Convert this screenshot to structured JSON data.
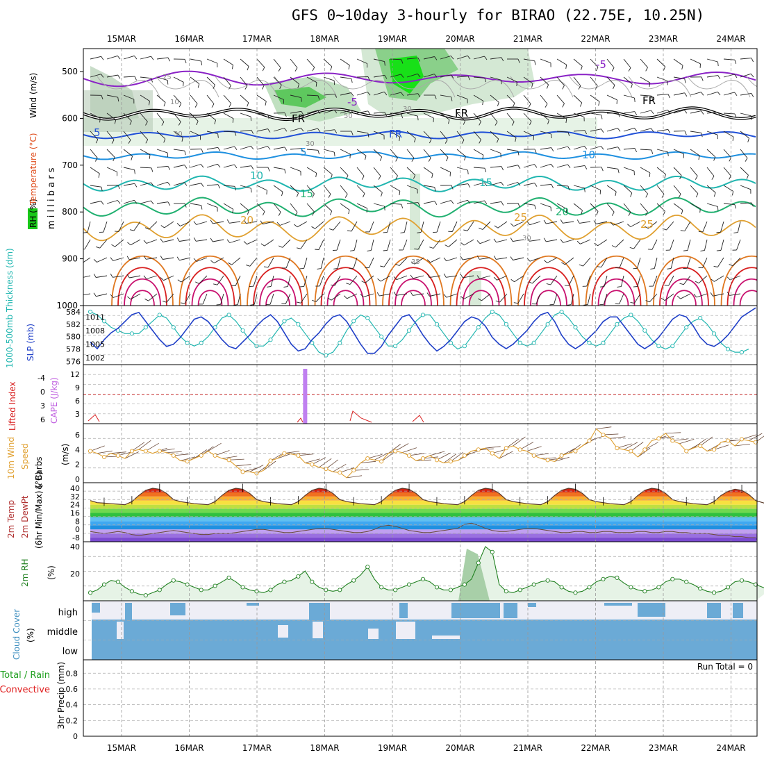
{
  "title": "GFS 0~10day 3-hourly for BIRAO (22.75E, 10.25N)",
  "chart_data": {
    "type": "multi-panel meteogram",
    "dates": [
      "15MAR",
      "16MAR",
      "17MAR",
      "18MAR",
      "19MAR",
      "20MAR",
      "21MAR",
      "22MAR",
      "23MAR",
      "24MAR"
    ],
    "colors": {
      "purple": "#8a22c6",
      "blue": "#2050d8",
      "lightblue": "#1e90e0",
      "teal": "#20b6b0",
      "green": "#20b070",
      "orange": "#e0a030",
      "darkorange": "#e07820",
      "red": "#d82020",
      "magenta": "#c8106e"
    },
    "panels": {
      "upper_air": {
        "ylabel": "m i l l i b a r s",
        "left_labels": {
          "rh": "RH (%)",
          "temperature": "Temperature (°C)",
          "wind": "Wind (m/s)"
        },
        "yticks": [
          "500",
          "600",
          "700",
          "800",
          "900",
          "1000"
        ],
        "contour_labels": [
          "-5",
          "-5",
          "FR",
          "FR",
          "FR",
          "FR",
          "5",
          "5",
          "10",
          "10",
          "15",
          "15",
          "20",
          "20",
          "25",
          "25",
          "25",
          "10",
          "30",
          "30",
          "50",
          "30",
          "30",
          "35"
        ]
      },
      "thickness_slp": {
        "label_thickness": "1000-500mb Thickness (dm)",
        "label_slp": "SLP (mb)",
        "thickness_ticks": [
          "584",
          "582",
          "580",
          "578",
          "576"
        ],
        "slp_ticks": [
          "1011",
          "1008",
          "1005",
          "1002"
        ],
        "slp": [
          1005.5,
          1004,
          1006,
          1007.5,
          1008.5,
          1010,
          1011.5,
          1012,
          1010,
          1008,
          1006,
          1004.5,
          1005,
          1006.5,
          1008.5,
          1010.5,
          1011,
          1010,
          1008,
          1006,
          1004.5,
          1004,
          1005.5,
          1007,
          1009,
          1010.5,
          1011.5,
          1010,
          1007.5,
          1005,
          1003.5,
          1004,
          1006,
          1007.5,
          1009.5,
          1011,
          1011.5,
          1010,
          1007.5,
          1005,
          1003,
          1003,
          1004.5,
          1007,
          1009,
          1011,
          1011.5,
          1009.5,
          1007,
          1005,
          1003.5,
          1004.5,
          1006,
          1008,
          1010,
          1011,
          1010.5,
          1009,
          1006.5,
          1005,
          1004,
          1005,
          1006.5,
          1008,
          1010,
          1011.5,
          1012,
          1010,
          1007,
          1005,
          1004,
          1005,
          1006.5,
          1008,
          1010,
          1011,
          1011,
          1009,
          1007,
          1005,
          1004,
          1005,
          1006.5,
          1008.5,
          1010.5,
          1011.5,
          1011,
          1009,
          1006.5,
          1005,
          1004.5,
          1005.5,
          1007,
          1009,
          1011,
          1012,
          1013
        ],
        "thickness": [
          584,
          583.5,
          582.5,
          581.5,
          581,
          580.5,
          580.5,
          580.5,
          581.5,
          582.5,
          583.5,
          583,
          581.5,
          580,
          579,
          578.5,
          579,
          580,
          581.5,
          583,
          583.5,
          582.5,
          581,
          579.5,
          578.5,
          578.5,
          579.5,
          581,
          582.5,
          583,
          582,
          580.5,
          579,
          577.5,
          577,
          577.5,
          579,
          581,
          582.5,
          583.5,
          583,
          581.5,
          580,
          578.5,
          578.5,
          579.5,
          581,
          582.5,
          583.5,
          583.5,
          582,
          580.5,
          579,
          578,
          578.5,
          580,
          581.5,
          583,
          584,
          583.5,
          582,
          580.5,
          579,
          578.5,
          579,
          580.5,
          582,
          583.5,
          584,
          583,
          581.5,
          580,
          579,
          578.5,
          579,
          580.5,
          582,
          583,
          583.5,
          582.5,
          581,
          579.5,
          578.5,
          578,
          578.5,
          580,
          581.5,
          582.5,
          583,
          582,
          580.5,
          579,
          578,
          577.5,
          577.5,
          578
        ]
      },
      "instability": {
        "label_li": "Lifted Index",
        "label_cape": "CAPE (J/kg)",
        "li_ticks": [
          "-4",
          "0",
          "3",
          "6"
        ],
        "cape_ticks": [
          "12",
          "9",
          "6",
          "3"
        ],
        "cape_bar_index": 31,
        "cape_bar_value": 13
      },
      "wind10m": {
        "label1": "10m Wind",
        "label2": "Speed",
        "label3": "& Barbs",
        "unit": "(m/s)",
        "yticks": [
          "6",
          "4",
          "2",
          "0"
        ],
        "speed": [
          3.8,
          3.5,
          3,
          3.5,
          3.2,
          2.8,
          3.8,
          4,
          3.8,
          3.5,
          3.8,
          3.6,
          3.2,
          2.5,
          2.4,
          2.8,
          3.2,
          3.8,
          3.2,
          2.8,
          2.6,
          1.8,
          1,
          1,
          0.8,
          1.2,
          2.5,
          2.8,
          3.5,
          3.4,
          3.2,
          2.2,
          2,
          1.6,
          1.4,
          1,
          0.9,
          0.2,
          1.2,
          2.2,
          2.8,
          2.6,
          2.4,
          3.5,
          3.8,
          3.6,
          3.2,
          2.5,
          2.8,
          3.2,
          2.6,
          2.2,
          2.4,
          2.5,
          3.2,
          3.8,
          4,
          4.2,
          3.5,
          2.8,
          4.2,
          4.5,
          4,
          3.8,
          3.2,
          2.8,
          2.6,
          2.4,
          3.2,
          3.5,
          3.8,
          4.5,
          5.2,
          6.8,
          6,
          5.5,
          4.2,
          4,
          3.8,
          3,
          4,
          5.2,
          5.5,
          6.2,
          5.2,
          4.8,
          3.8,
          4.2,
          4.5,
          3.8,
          4,
          5,
          5.2,
          4.5,
          5.4,
          5.2,
          5.0
        ]
      },
      "temp2m": {
        "label1": "2m Temp",
        "label2": "2m DewPt",
        "label3": "(6hr Min/Max) (°C)",
        "yticks": [
          "40",
          "32",
          "24",
          "16",
          "8",
          "0",
          "-8"
        ],
        "temp": [
          28,
          26,
          25.5,
          25,
          24.5,
          24,
          27,
          33,
          38,
          40,
          39,
          35,
          29,
          27,
          26,
          25,
          24.5,
          24,
          27,
          33,
          38,
          40,
          39,
          35,
          29,
          27,
          26,
          25,
          24.5,
          24,
          27,
          33,
          38,
          40,
          39,
          35,
          29,
          27,
          26,
          25,
          24.5,
          24,
          27,
          33,
          38,
          40,
          39,
          35,
          29,
          27,
          26,
          25,
          24.5,
          24,
          27,
          33,
          38,
          40,
          39,
          35,
          29,
          27,
          26,
          25,
          24.5,
          24,
          27,
          33,
          38,
          40,
          39,
          35,
          29,
          27,
          26,
          25,
          24.5,
          24,
          27,
          33,
          38,
          40,
          39,
          35,
          29,
          27,
          26,
          25,
          24.5,
          24,
          27,
          33,
          37,
          39,
          38,
          34,
          28,
          26,
          24,
          22,
          22
        ],
        "dewpt": [
          -2,
          -3,
          -4,
          -3,
          -2,
          -3,
          -5,
          -6,
          -5,
          -4,
          -3,
          -2,
          -1,
          -2,
          -3,
          -4,
          -5,
          -5,
          -4,
          -4,
          -4,
          -3,
          -2,
          -1,
          0,
          0,
          -1,
          -2,
          -3,
          -3,
          -2,
          -1,
          0,
          1,
          1,
          0,
          -1,
          -2,
          -3,
          -3,
          -2,
          0,
          3,
          4,
          3,
          1,
          -1,
          -2,
          -3,
          -3,
          -2,
          -1,
          0,
          1,
          5,
          6,
          4,
          1,
          -1,
          -2,
          -2,
          -1,
          0,
          1,
          1,
          0,
          -1,
          -2,
          -3,
          -3,
          -2,
          -2,
          -3,
          -3,
          -2,
          -2,
          -3,
          -3,
          -3,
          -2,
          -2,
          -3,
          -3,
          -2,
          -2,
          -3,
          -3,
          -4,
          -4,
          -4,
          -5,
          -6,
          -6,
          -7,
          -7,
          -8,
          -8
        ]
      },
      "rh2m": {
        "label": "2m RH",
        "unit": "(%)",
        "yticks": [
          "40",
          "20"
        ],
        "values": [
          6,
          8,
          12,
          15,
          14,
          10,
          7,
          5,
          4,
          6,
          8,
          12,
          15,
          14,
          12,
          10,
          8,
          8,
          11,
          14,
          17,
          14,
          10,
          8,
          7,
          6,
          8,
          12,
          14,
          15,
          18,
          22,
          14,
          10,
          8,
          7,
          8,
          12,
          15,
          19,
          25,
          16,
          10,
          8,
          8,
          10,
          12,
          14,
          16,
          14,
          10,
          8,
          8,
          10,
          12,
          16,
          28,
          40,
          36,
          12,
          7,
          6,
          8,
          10,
          12,
          14,
          15,
          14,
          10,
          7,
          6,
          7,
          10,
          14,
          16,
          18,
          17,
          13,
          10,
          8,
          7,
          8,
          10,
          14,
          16,
          16,
          14,
          12,
          9,
          7,
          6,
          7,
          10,
          14,
          15,
          14,
          12,
          10,
          8
        ]
      },
      "cloud": {
        "label": "Cloud Cover",
        "unit": "(%)",
        "levels": [
          "high",
          "middle",
          "low"
        ]
      },
      "precip": {
        "label_total": "Total / Rain",
        "label_conv": "Convective",
        "label_unit": "3hr Precip (mm)",
        "run_total": "Run Total = 0",
        "yticks": [
          "0.8",
          "0.6",
          "0.4",
          "0.2",
          "0"
        ]
      }
    }
  }
}
